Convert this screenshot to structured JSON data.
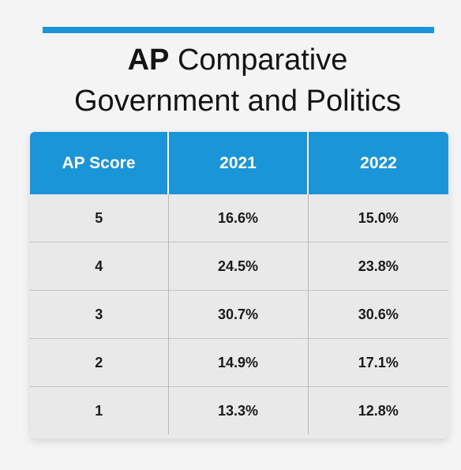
{
  "header": {
    "title_bold": "AP",
    "title_rest": " Comparative",
    "title_line2": "Government and Politics"
  },
  "table": {
    "columns": [
      "AP Score",
      "2021",
      "2022"
    ],
    "rows": [
      [
        "5",
        "16.6%",
        "15.0%"
      ],
      [
        "4",
        "24.5%",
        "23.8%"
      ],
      [
        "3",
        "30.7%",
        "30.6%"
      ],
      [
        "2",
        "14.9%",
        "17.1%"
      ],
      [
        "1",
        "13.3%",
        "12.8%"
      ]
    ]
  },
  "colors": {
    "accent": "#1a96d8",
    "table_bg": "#e9e9e9",
    "text": "#141414"
  }
}
